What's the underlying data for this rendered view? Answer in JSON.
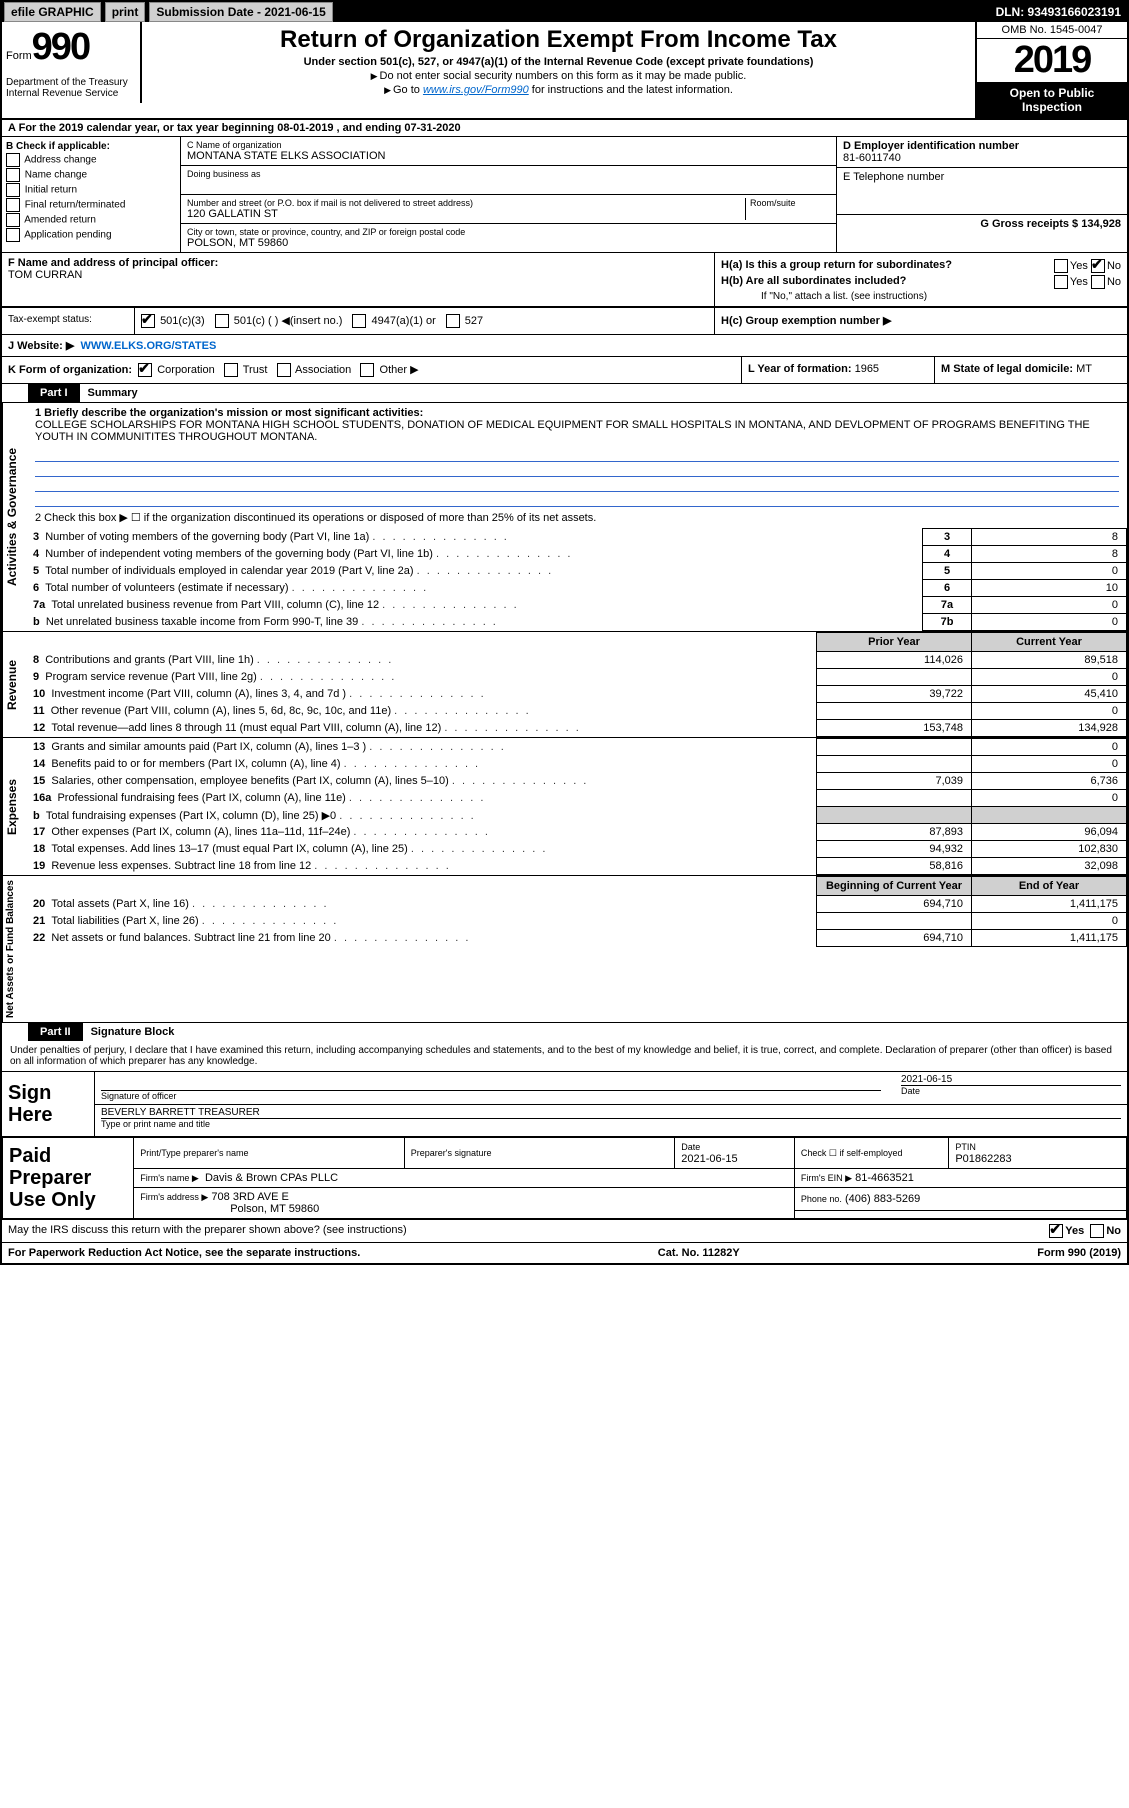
{
  "topbar": {
    "efile": "efile GRAPHIC",
    "print": "print",
    "subdate_label": "Submission Date - 2021-06-15",
    "dln": "DLN: 93493166023191"
  },
  "header": {
    "form_word": "Form",
    "form_num": "990",
    "title": "Return of Organization Exempt From Income Tax",
    "subtitle": "Under section 501(c), 527, or 4947(a)(1) of the Internal Revenue Code (except private foundations)",
    "note1": "Do not enter social security numbers on this form as it may be made public.",
    "note2_pre": "Go to ",
    "note2_link": "www.irs.gov/Form990",
    "note2_post": " for instructions and the latest information.",
    "dept": "Department of the Treasury\nInternal Revenue Service",
    "omb": "OMB No. 1545-0047",
    "year": "2019",
    "inspection": "Open to Public Inspection"
  },
  "lineA": "For the 2019 calendar year, or tax year beginning 08-01-2019    , and ending 07-31-2020",
  "boxB": {
    "label": "B Check if applicable:",
    "items": [
      "Address change",
      "Name change",
      "Initial return",
      "Final return/terminated",
      "Amended return",
      "Application pending"
    ]
  },
  "boxC": {
    "name_label": "C Name of organization",
    "name": "MONTANA STATE ELKS ASSOCIATION",
    "dba_label": "Doing business as",
    "addr_label": "Number and street (or P.O. box if mail is not delivered to street address)",
    "room_label": "Room/suite",
    "addr": "120 GALLATIN ST",
    "city_label": "City or town, state or province, country, and ZIP or foreign postal code",
    "city": "POLSON, MT  59860"
  },
  "boxD": {
    "label": "D Employer identification number",
    "value": "81-6011740"
  },
  "boxE": {
    "label": "E Telephone number",
    "value": ""
  },
  "boxG": {
    "label": "G Gross receipts $",
    "value": "134,928"
  },
  "boxF": {
    "label": "F  Name and address of principal officer:",
    "value": "TOM CURRAN"
  },
  "boxH": {
    "ha": "H(a)  Is this a group return for subordinates?",
    "hb": "H(b)  Are all subordinates included?",
    "hb_note": "If \"No,\" attach a list. (see instructions)",
    "hc": "H(c)  Group exemption number ▶",
    "yes": "Yes",
    "no": "No"
  },
  "taxexempt": {
    "label": "Tax-exempt status:",
    "c3": "501(c)(3)",
    "c": "501(c) (   ) ◀(insert no.)",
    "a1": "4947(a)(1) or",
    "s527": "527"
  },
  "boxJ": {
    "label": "J   Website: ▶",
    "value": "WWW.ELKS.ORG/STATES"
  },
  "boxK": {
    "label": "K Form of organization:",
    "corp": "Corporation",
    "trust": "Trust",
    "assoc": "Association",
    "other": "Other ▶"
  },
  "boxL": {
    "label": "L Year of formation:",
    "value": "1965"
  },
  "boxM": {
    "label": "M State of legal domicile:",
    "value": "MT"
  },
  "partI": {
    "tab": "Part I",
    "title": "Summary"
  },
  "mission": {
    "label": "1  Briefly describe the organization's mission or most significant activities:",
    "text": "COLLEGE SCHOLARSHIPS FOR MONTANA HIGH SCHOOL STUDENTS, DONATION OF MEDICAL EQUIPMENT FOR SMALL HOSPITALS IN MONTANA, AND DEVLOPMENT OF PROGRAMS BENEFITING THE YOUTH IN COMMUNITITES THROUGHOUT MONTANA."
  },
  "governance": {
    "l2": "2   Check this box ▶ ☐  if the organization discontinued its operations or disposed of more than 25% of its net assets.",
    "rows": [
      {
        "n": "3",
        "lbl": "Number of voting members of the governing body (Part VI, line 1a)",
        "box": "3",
        "val": "8"
      },
      {
        "n": "4",
        "lbl": "Number of independent voting members of the governing body (Part VI, line 1b)",
        "box": "4",
        "val": "8"
      },
      {
        "n": "5",
        "lbl": "Total number of individuals employed in calendar year 2019 (Part V, line 2a)",
        "box": "5",
        "val": "0"
      },
      {
        "n": "6",
        "lbl": "Total number of volunteers (estimate if necessary)",
        "box": "6",
        "val": "10"
      },
      {
        "n": "7a",
        "lbl": "Total unrelated business revenue from Part VIII, column (C), line 12",
        "box": "7a",
        "val": "0"
      },
      {
        "n": "b",
        "lbl": "Net unrelated business taxable income from Form 990-T, line 39",
        "box": "7b",
        "val": "0"
      }
    ]
  },
  "fin_headers": {
    "prior": "Prior Year",
    "current": "Current Year"
  },
  "revenue": [
    {
      "n": "8",
      "lbl": "Contributions and grants (Part VIII, line 1h)",
      "p": "114,026",
      "c": "89,518"
    },
    {
      "n": "9",
      "lbl": "Program service revenue (Part VIII, line 2g)",
      "p": "",
      "c": "0"
    },
    {
      "n": "10",
      "lbl": "Investment income (Part VIII, column (A), lines 3, 4, and 7d )",
      "p": "39,722",
      "c": "45,410"
    },
    {
      "n": "11",
      "lbl": "Other revenue (Part VIII, column (A), lines 5, 6d, 8c, 9c, 10c, and 11e)",
      "p": "",
      "c": "0"
    },
    {
      "n": "12",
      "lbl": "Total revenue—add lines 8 through 11 (must equal Part VIII, column (A), line 12)",
      "p": "153,748",
      "c": "134,928"
    }
  ],
  "expenses": [
    {
      "n": "13",
      "lbl": "Grants and similar amounts paid (Part IX, column (A), lines 1–3 )",
      "p": "",
      "c": "0"
    },
    {
      "n": "14",
      "lbl": "Benefits paid to or for members (Part IX, column (A), line 4)",
      "p": "",
      "c": "0"
    },
    {
      "n": "15",
      "lbl": "Salaries, other compensation, employee benefits (Part IX, column (A), lines 5–10)",
      "p": "7,039",
      "c": "6,736"
    },
    {
      "n": "16a",
      "lbl": "Professional fundraising fees (Part IX, column (A), line 11e)",
      "p": "",
      "c": "0"
    },
    {
      "n": "b",
      "lbl": "Total fundraising expenses (Part IX, column (D), line 25) ▶0",
      "p": "SHADE",
      "c": "SHADE"
    },
    {
      "n": "17",
      "lbl": "Other expenses (Part IX, column (A), lines 11a–11d, 11f–24e)",
      "p": "87,893",
      "c": "96,094"
    },
    {
      "n": "18",
      "lbl": "Total expenses. Add lines 13–17 (must equal Part IX, column (A), line 25)",
      "p": "94,932",
      "c": "102,830"
    },
    {
      "n": "19",
      "lbl": "Revenue less expenses. Subtract line 18 from line 12",
      "p": "58,816",
      "c": "32,098"
    }
  ],
  "net_headers": {
    "begin": "Beginning of Current Year",
    "end": "End of Year"
  },
  "netassets": [
    {
      "n": "20",
      "lbl": "Total assets (Part X, line 16)",
      "p": "694,710",
      "c": "1,411,175"
    },
    {
      "n": "21",
      "lbl": "Total liabilities (Part X, line 26)",
      "p": "",
      "c": "0"
    },
    {
      "n": "22",
      "lbl": "Net assets or fund balances. Subtract line 21 from line 20",
      "p": "694,710",
      "c": "1,411,175"
    }
  ],
  "section_labels": {
    "gov": "Activities & Governance",
    "rev": "Revenue",
    "exp": "Expenses",
    "net": "Net Assets or Fund Balances"
  },
  "partII": {
    "tab": "Part II",
    "title": "Signature Block"
  },
  "sig": {
    "disclaimer": "Under penalties of perjury, I declare that I have examined this return, including accompanying schedules and statements, and to the best of my knowledge and belief, it is true, correct, and complete. Declaration of preparer (other than officer) is based on all information of which preparer has any knowledge.",
    "sign_here": "Sign Here",
    "sig_officer": "Signature of officer",
    "date_label": "Date",
    "date": "2021-06-15",
    "name_title": "BEVERLY BARRETT  TREASURER",
    "name_title_label": "Type or print name and title"
  },
  "prep": {
    "label": "Paid Preparer Use Only",
    "h_name": "Print/Type preparer's name",
    "h_sig": "Preparer's signature",
    "h_date": "Date",
    "date": "2021-06-15",
    "check_self": "Check ☐ if self-employed",
    "ptin_label": "PTIN",
    "ptin": "P01862283",
    "firm_name_label": "Firm's name    ▶",
    "firm_name": "Davis & Brown CPAs PLLC",
    "firm_ein_label": "Firm's EIN ▶",
    "firm_ein": "81-4663521",
    "firm_addr_label": "Firm's address ▶",
    "firm_addr1": "708 3RD AVE E",
    "firm_addr2": "Polson, MT  59860",
    "phone_label": "Phone no.",
    "phone": "(406) 883-5269"
  },
  "discuss": {
    "text": "May the IRS discuss this return with the preparer shown above? (see instructions)",
    "yes": "Yes",
    "no": "No"
  },
  "footer": {
    "left": "For Paperwork Reduction Act Notice, see the separate instructions.",
    "mid": "Cat. No. 11282Y",
    "right": "Form 990 (2019)"
  }
}
